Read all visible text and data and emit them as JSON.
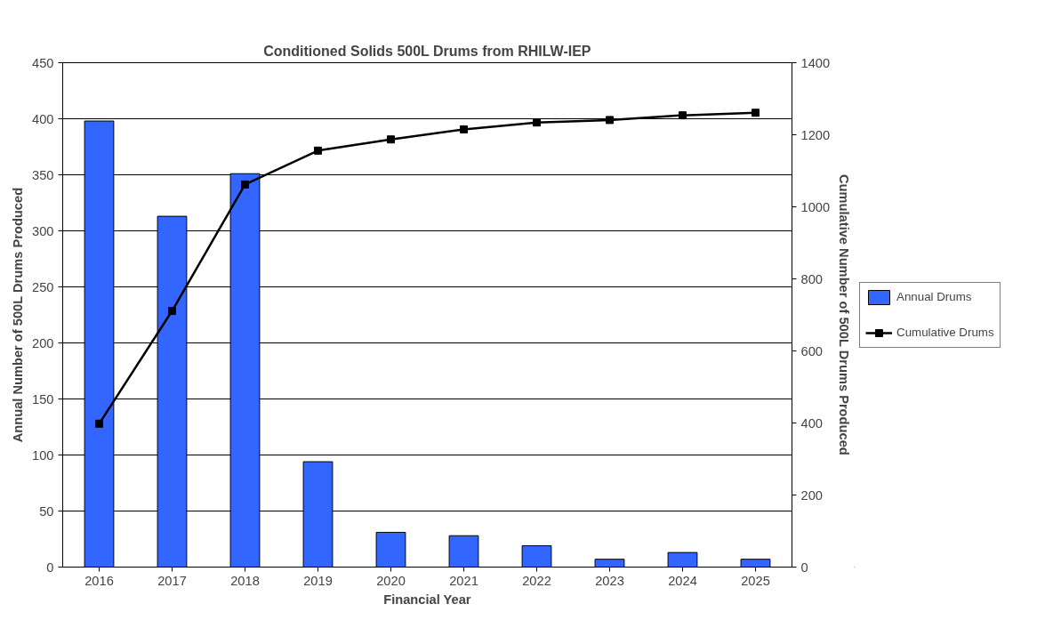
{
  "chart_data": {
    "type": "bar",
    "title": "Conditioned Solids 500L Drums from RHILW-IEP",
    "xlabel": "Financial Year",
    "ylabel": "Annual Number of 500L Drums Produced",
    "y2label": "Cumulative Number of 500L Drums Produced",
    "categories": [
      "2016",
      "2017",
      "2018",
      "2019",
      "2020",
      "2021",
      "2022",
      "2023",
      "2024",
      "2025"
    ],
    "series": [
      {
        "name": "Annual Drums",
        "color": "#3366ff",
        "values": [
          398,
          313,
          351,
          94,
          31,
          28,
          19,
          7,
          13,
          7
        ]
      },
      {
        "name": "Cumulative Drums",
        "type": "line",
        "axis": "y2",
        "color": "#000000",
        "marker": "square",
        "values": [
          398,
          711,
          1062,
          1156,
          1187,
          1215,
          1234,
          1241,
          1254,
          1261
        ]
      }
    ],
    "ylim": [
      0,
      450
    ],
    "yticks": [
      0,
      50,
      100,
      150,
      200,
      250,
      300,
      350,
      400,
      450
    ],
    "y2lim": [
      0,
      1400
    ],
    "y2ticks": [
      0,
      200,
      400,
      600,
      800,
      1000,
      1200,
      1400
    ],
    "grid": "y",
    "legend": "right"
  }
}
